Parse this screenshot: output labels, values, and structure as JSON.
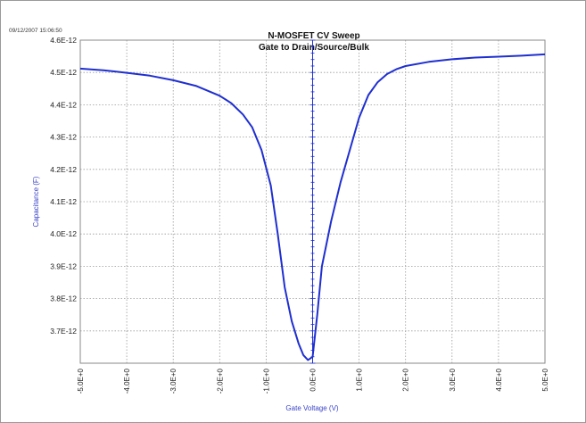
{
  "timestamp": "09/12/2007 15:06:50",
  "chart_data": {
    "type": "line",
    "title": "N-MOSFET CV Sweep",
    "subtitle": "Gate to Drain/Source/Bulk",
    "xlabel": "Gate Voltage (V)",
    "ylabel": "Capacitance (F)",
    "xlim": [
      -5.0,
      5.0
    ],
    "ylim": [
      3.6e-12,
      4.6e-12
    ],
    "x_ticks": [
      -5,
      -4,
      -3,
      -2,
      -1,
      0,
      1,
      2,
      3,
      4,
      5
    ],
    "x_tick_labels": [
      "-5.0E+0",
      "-4.0E+0",
      "-3.0E+0",
      "-2.0E+0",
      "-1.0E+0",
      "0.0E+0",
      "1.0E+0",
      "2.0E+0",
      "3.0E+0",
      "4.0E+0",
      "5.0E+0"
    ],
    "y_ticks": [
      3.7e-12,
      3.8e-12,
      3.9e-12,
      4e-12,
      4.1e-12,
      4.2e-12,
      4.3e-12,
      4.4e-12,
      4.5e-12,
      4.6e-12
    ],
    "y_tick_labels": [
      "3.7E-12",
      "3.8E-12",
      "3.9E-12",
      "4.0E-12",
      "4.1E-12",
      "4.2E-12",
      "4.3E-12",
      "4.4E-12",
      "4.5E-12",
      "4.6E-12"
    ],
    "grid": true,
    "colors": {
      "series": "#1f2fd0",
      "axis_label": "#3a44c8",
      "grid": "#9a9a9a"
    },
    "series": [
      {
        "x": [
          -5.0,
          -4.5,
          -4.0,
          -3.5,
          -3.0,
          -2.5,
          -2.0,
          -1.75,
          -1.5,
          -1.3,
          -1.1,
          -0.9,
          -0.75,
          -0.6,
          -0.45,
          -0.3,
          -0.2,
          -0.1,
          0.0,
          0.1,
          0.2,
          0.4,
          0.6,
          0.8,
          1.0,
          1.2,
          1.4,
          1.6,
          1.8,
          2.0,
          2.5,
          3.0,
          3.5,
          4.0,
          4.5,
          5.0
        ],
        "y": [
          4.512e-12,
          4.507e-12,
          4.499e-12,
          4.49e-12,
          4.476e-12,
          4.458e-12,
          4.428e-12,
          4.405e-12,
          4.37e-12,
          4.33e-12,
          4.26e-12,
          4.15e-12,
          4e-12,
          3.835e-12,
          3.73e-12,
          3.66e-12,
          3.625e-12,
          3.61e-12,
          3.62e-12,
          3.75e-12,
          3.9e-12,
          4.04e-12,
          4.16e-12,
          4.26e-12,
          4.36e-12,
          4.43e-12,
          4.47e-12,
          4.495e-12,
          4.51e-12,
          4.52e-12,
          4.533e-12,
          4.541e-12,
          4.546e-12,
          4.549e-12,
          4.552e-12,
          4.556e-12
        ]
      }
    ]
  }
}
